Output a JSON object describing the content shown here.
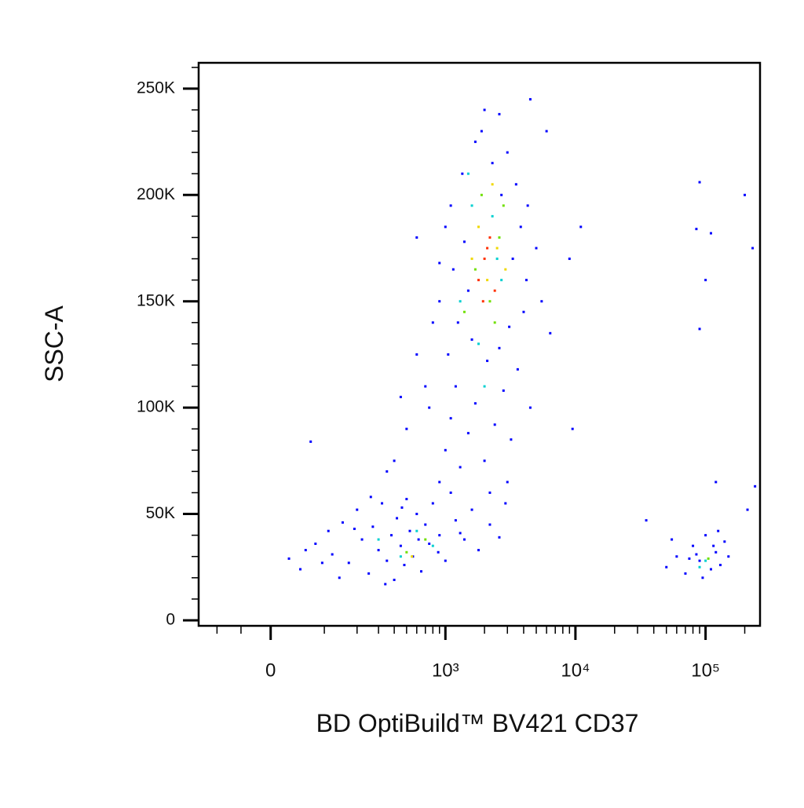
{
  "chart_data": {
    "type": "scatter",
    "xlabel": "BD OptiBuild™ BV421 CD37",
    "ylabel": "SSC-A",
    "xscale": "biexponential",
    "xlim": [
      -150,
      262144
    ],
    "xticks": [
      0,
      {
        "value": 1000,
        "label": "10³"
      },
      {
        "value": 10000,
        "label": "10⁴"
      },
      {
        "value": 100000,
        "label": "10⁵"
      }
    ],
    "xminorticks": [
      -100,
      -50,
      100,
      200,
      300,
      400,
      500,
      600,
      700,
      800,
      900,
      2000,
      3000,
      4000,
      5000,
      6000,
      7000,
      8000,
      9000,
      20000,
      30000,
      40000,
      50000,
      60000,
      70000,
      80000,
      90000,
      200000
    ],
    "ylim": [
      -2600,
      262144
    ],
    "yticks": [
      0,
      {
        "value": 50000,
        "label": "50K"
      },
      {
        "value": 100000,
        "label": "100K"
      },
      {
        "value": 150000,
        "label": "150K"
      },
      {
        "value": 200000,
        "label": "200K"
      },
      {
        "value": 250000,
        "label": "250K"
      }
    ],
    "yminorticks": [
      10000,
      20000,
      30000,
      40000,
      60000,
      70000,
      80000,
      90000,
      110000,
      120000,
      130000,
      140000,
      160000,
      170000,
      180000,
      190000,
      210000,
      220000,
      230000,
      240000,
      260000
    ],
    "series": [
      {
        "color": "#0000ff",
        "x": [
          30,
          50,
          80,
          110,
          120,
          150,
          170,
          200,
          220,
          250,
          270,
          300,
          320,
          350,
          380,
          400,
          420,
          450,
          480,
          500,
          530,
          560,
          600,
          650,
          700,
          750,
          800,
          900,
          1000,
          1100,
          1200,
          1400,
          1600,
          1800,
          2200,
          2600,
          60,
          140,
          260,
          340,
          460,
          620,
          880,
          1300,
          95,
          190,
          900,
          1000,
          1100,
          1200,
          1300,
          1500,
          1700,
          2000,
          2400,
          2800,
          3200,
          3600,
          1050,
          1250,
          1600,
          2100,
          2600,
          3100,
          4000,
          900,
          1150,
          1400,
          3300,
          4200,
          5000,
          1100,
          1350,
          1700,
          2000,
          2600,
          3000,
          3500,
          4300,
          1900,
          2300,
          2700,
          1000,
          1500,
          3800,
          5500,
          6400,
          700,
          600,
          500,
          450,
          400,
          350,
          800,
          750,
          2200,
          2900,
          4500,
          3000,
          70,
          600,
          6000,
          9000,
          9500,
          4500,
          900,
          11000,
          50000,
          60000,
          70000,
          80000,
          90000,
          100000,
          110000,
          120000,
          130000,
          140000,
          150000,
          55000,
          75000,
          95000,
          125000,
          85000,
          115000,
          35000,
          90000,
          85000,
          100000,
          110000,
          90000,
          200000,
          230000,
          240000,
          210000,
          120000
        ],
        "y": [
          29000,
          24000,
          36000,
          42000,
          31000,
          46000,
          27000,
          52000,
          38000,
          22000,
          44000,
          33000,
          55000,
          28000,
          40000,
          19000,
          48000,
          35000,
          26000,
          57000,
          42000,
          30000,
          50000,
          23000,
          45000,
          36000,
          55000,
          40000,
          28000,
          60000,
          47000,
          38000,
          52000,
          33000,
          45000,
          39000,
          33000,
          20000,
          58000,
          17000,
          53000,
          38000,
          32000,
          41000,
          27000,
          43000,
          65000,
          80000,
          95000,
          110000,
          72000,
          88000,
          102000,
          75000,
          92000,
          108000,
          85000,
          118000,
          125000,
          140000,
          132000,
          122000,
          128000,
          138000,
          145000,
          150000,
          165000,
          178000,
          170000,
          160000,
          175000,
          195000,
          210000,
          225000,
          240000,
          238000,
          220000,
          205000,
          195000,
          230000,
          215000,
          200000,
          185000,
          155000,
          185000,
          150000,
          135000,
          110000,
          125000,
          90000,
          105000,
          75000,
          70000,
          140000,
          100000,
          60000,
          55000,
          100000,
          65000,
          84000,
          180000,
          230000,
          170000,
          90000,
          245000,
          168000,
          185000,
          25000,
          30000,
          22000,
          35000,
          28000,
          40000,
          24000,
          32000,
          26000,
          37000,
          30000,
          38000,
          29000,
          20000,
          42000,
          31000,
          35000,
          47000,
          206000,
          184000,
          160000,
          182000,
          137000,
          200000,
          175000,
          63000,
          52000,
          65000
        ]
      },
      {
        "color": "#00d0d0",
        "x": [
          300,
          450,
          600,
          800,
          1300,
          1800,
          2500,
          1500,
          2300,
          2000,
          100000,
          90000,
          2700,
          1600
        ],
        "y": [
          38000,
          30000,
          42000,
          35000,
          150000,
          130000,
          170000,
          210000,
          190000,
          110000,
          28000,
          25000,
          160000,
          195000
        ]
      },
      {
        "color": "#70e000",
        "x": [
          500,
          700,
          1700,
          2200,
          1900,
          2600,
          1400,
          105000,
          2400,
          2800
        ],
        "y": [
          32000,
          38000,
          165000,
          150000,
          200000,
          180000,
          145000,
          29000,
          140000,
          195000
        ]
      },
      {
        "color": "#f0d800",
        "x": [
          1800,
          2100,
          2500,
          1600,
          2300,
          2900,
          550
        ],
        "y": [
          185000,
          160000,
          175000,
          170000,
          205000,
          165000,
          30000
        ]
      },
      {
        "color": "#ff3000",
        "x": [
          2000,
          2200,
          1800,
          2400,
          1950,
          2100
        ],
        "y": [
          170000,
          180000,
          160000,
          155000,
          150000,
          175000
        ]
      }
    ]
  }
}
